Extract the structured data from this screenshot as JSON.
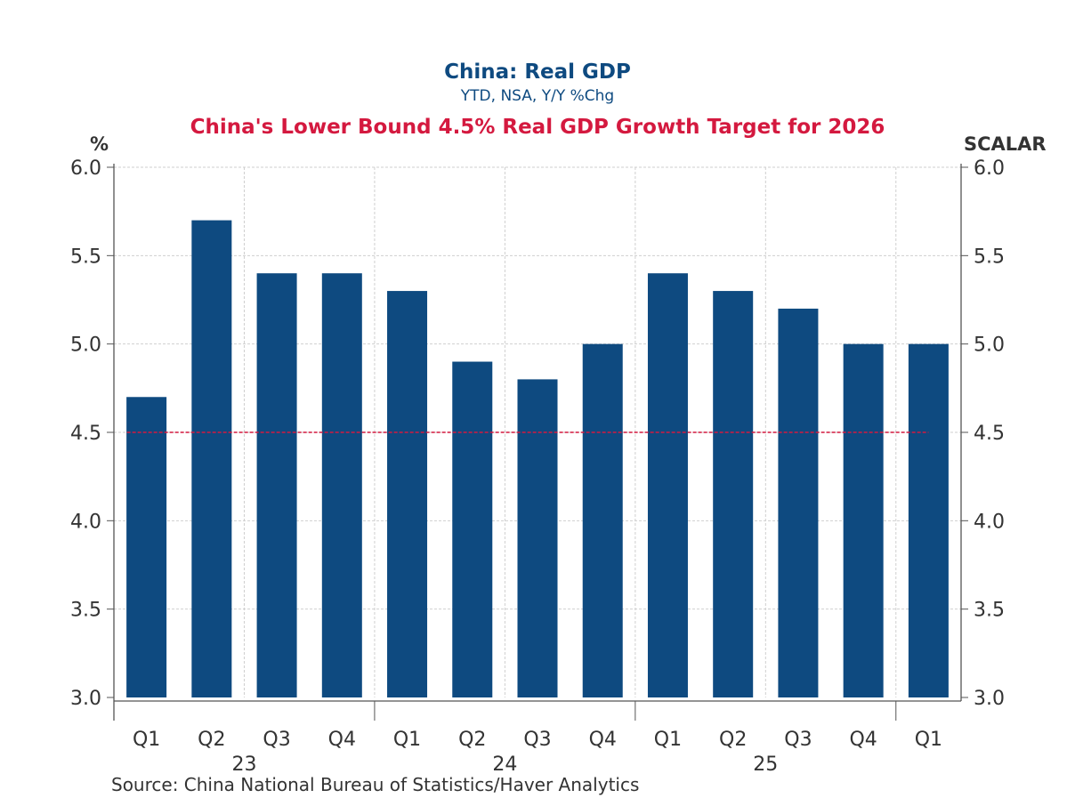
{
  "chart_data": {
    "type": "bar",
    "title": "China: Real GDP",
    "subtitle": "YTD, NSA, Y/Y %Chg",
    "annotation": "China's Lower Bound 4.5% Real GDP Growth Target for 2026",
    "ylabel_left": "%",
    "ylabel_right": "SCALAR",
    "categories": [
      "Q1",
      "Q2",
      "Q3",
      "Q4",
      "Q1",
      "Q2",
      "Q3",
      "Q4",
      "Q1",
      "Q2",
      "Q3",
      "Q4",
      "Q1"
    ],
    "year_labels": [
      "23",
      "24",
      "25"
    ],
    "values": [
      4.7,
      5.7,
      5.4,
      5.4,
      5.3,
      4.9,
      4.8,
      5.0,
      5.4,
      5.3,
      5.2,
      5.0,
      5.0
    ],
    "reference_line": {
      "value": 4.5,
      "color": "#d4193f",
      "style": "dashed"
    },
    "ylim": [
      3.0,
      6.0
    ],
    "yticks": [
      "3.0",
      "3.5",
      "4.0",
      "4.5",
      "5.0",
      "5.5",
      "6.0"
    ],
    "grid": true,
    "bar_color": "#0e4a80",
    "source": "Source:  China National Bureau of Statistics/Haver Analytics"
  }
}
